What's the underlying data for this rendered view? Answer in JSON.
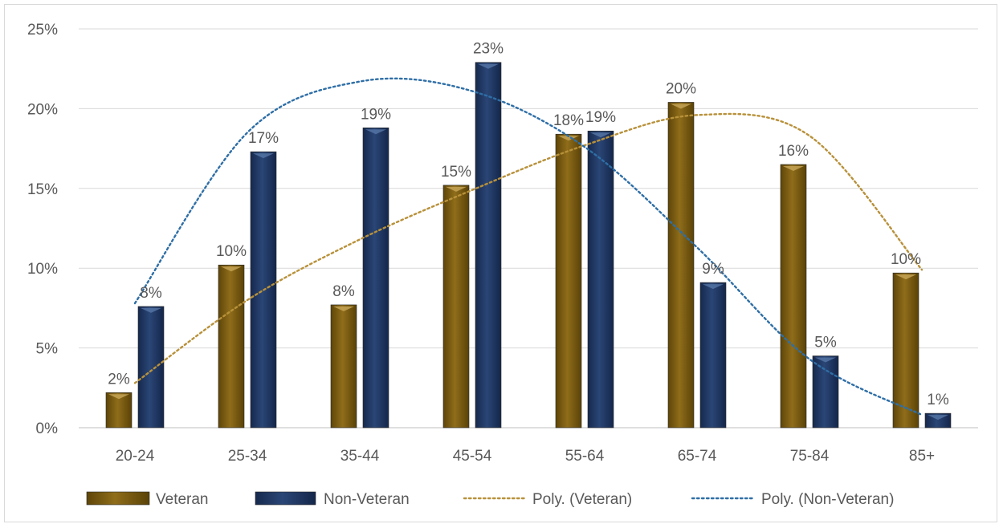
{
  "chart_data": {
    "type": "bar",
    "title": "",
    "xlabel": "",
    "ylabel": "",
    "categories": [
      "20-24",
      "25-34",
      "35-44",
      "45-54",
      "55-64",
      "65-74",
      "75-84",
      "85+"
    ],
    "ylim": [
      0,
      25
    ],
    "yticks": [
      "0%",
      "5%",
      "10%",
      "15%",
      "20%",
      "25%"
    ],
    "grid": true,
    "legend_position": "bottom",
    "series": [
      {
        "name": "Veteran",
        "color": "#7a5c10",
        "values": [
          2.2,
          10.2,
          7.7,
          15.2,
          18.4,
          20.4,
          16.5,
          9.7
        ],
        "labels": [
          "2%",
          "10%",
          "8%",
          "15%",
          "18%",
          "20%",
          "16%",
          "10%"
        ]
      },
      {
        "name": "Non-Veteran",
        "color": "#1f3864",
        "values": [
          7.6,
          17.3,
          18.8,
          22.9,
          18.6,
          9.1,
          4.5,
          0.9
        ],
        "labels": [
          "8%",
          "17%",
          "19%",
          "23%",
          "19%",
          "9%",
          "5%",
          "1%"
        ]
      }
    ],
    "trendlines": [
      {
        "name": "Poly. (Veteran)",
        "color": "#b8913a",
        "values": [
          2.8,
          8.0,
          11.8,
          14.9,
          17.7,
          19.6,
          18.3,
          9.9
        ]
      },
      {
        "name": "Poly. (Non-Veteran)",
        "color": "#2e6ea6",
        "values": [
          7.8,
          18.5,
          21.7,
          21.1,
          17.6,
          11.3,
          4.3,
          0.8
        ]
      }
    ]
  }
}
